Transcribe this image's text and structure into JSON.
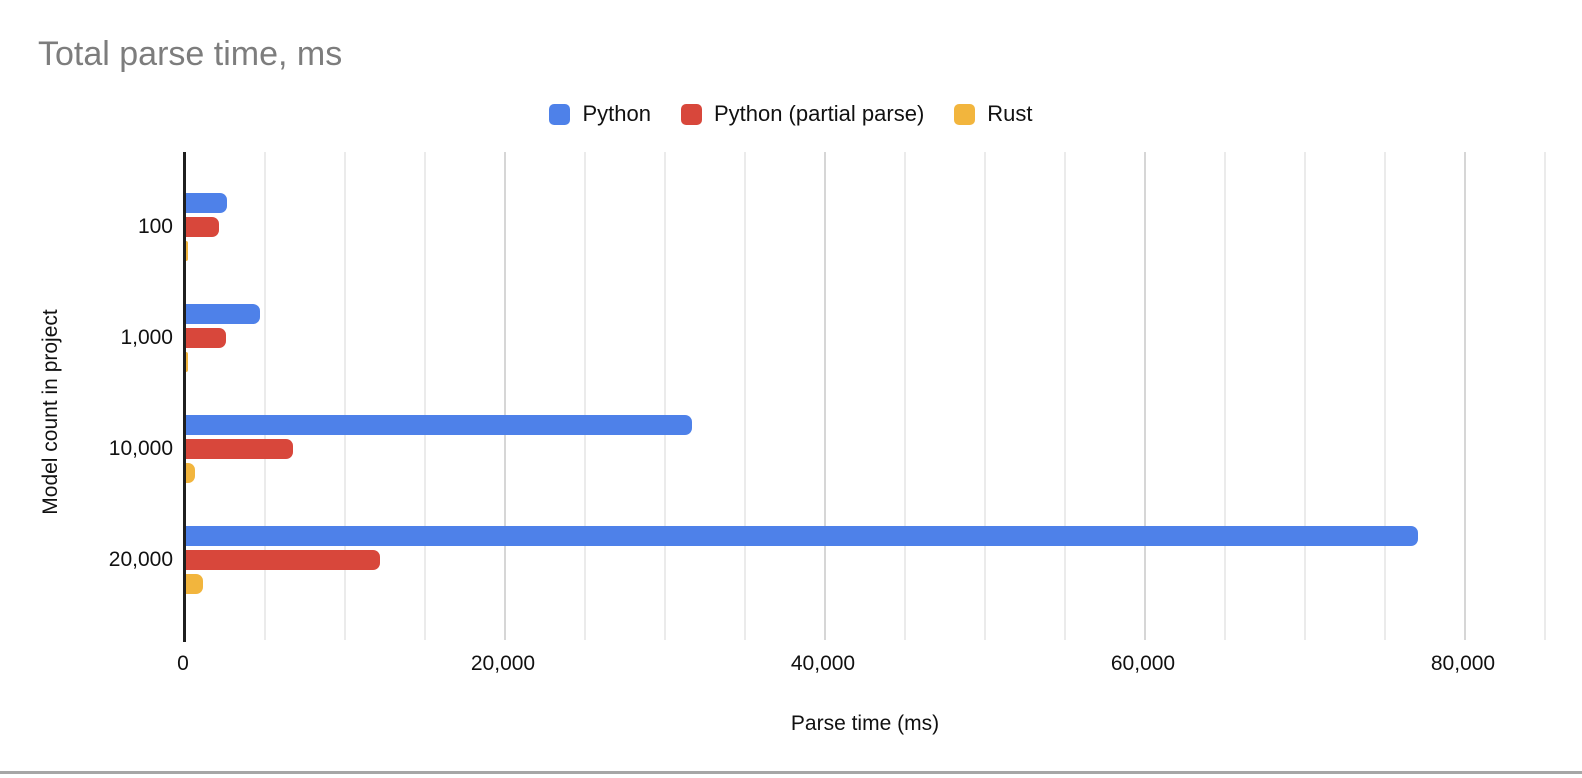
{
  "page": {
    "background_color": "#ffffff",
    "bottom_border_color": "#a6a6a6"
  },
  "chart_data": {
    "type": "bar",
    "orientation": "horizontal",
    "title": "Total parse time, ms",
    "title_color": "#7d7d7d",
    "xlabel": "Parse time (ms)",
    "ylabel": "Model count in project",
    "legend_position": "top",
    "grid": true,
    "categories": [
      "100",
      "1,000",
      "10,000",
      "20,000"
    ],
    "series": [
      {
        "name": "Python",
        "color": "#4e81e9",
        "values": [
          2550,
          4600,
          31600,
          77000
        ]
      },
      {
        "name": "Python (partial parse)",
        "color": "#d8473b",
        "values": [
          2050,
          2500,
          6700,
          12100
        ]
      },
      {
        "name": "Rust",
        "color": "#f2b53d",
        "values": [
          130,
          130,
          580,
          1050
        ]
      }
    ],
    "xlim": [
      0,
      85000
    ],
    "x_gridline_step": 5000,
    "x_major_step": 20000,
    "x_ticks": [
      {
        "value": 0,
        "label": "0"
      },
      {
        "value": 20000,
        "label": "20,000"
      },
      {
        "value": 40000,
        "label": "40,000"
      },
      {
        "value": 60000,
        "label": "60,000"
      },
      {
        "value": 80000,
        "label": "80,000"
      }
    ],
    "gridline_minor_color": "#ebebeb",
    "gridline_major_color": "#d6d6d6",
    "axis_line_color": "#1f1f1f",
    "label_color": "#111111"
  }
}
